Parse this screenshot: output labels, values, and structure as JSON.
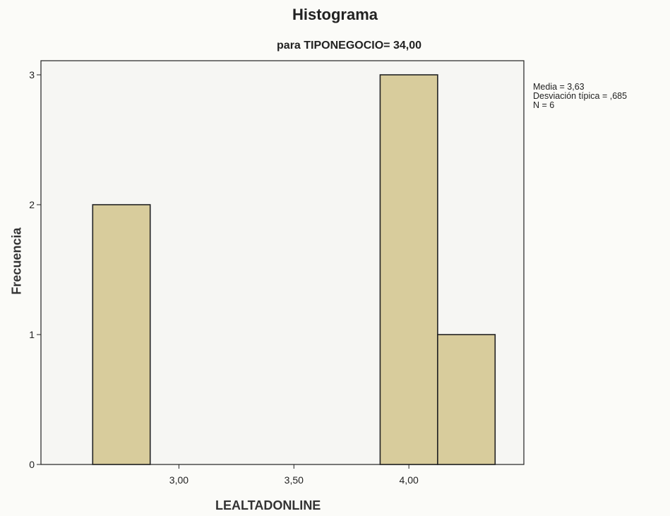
{
  "chart_data": {
    "type": "bar",
    "title": "Histograma",
    "subtitle": "para TIPONEGOCIO= 34,00",
    "xlabel": "LEALTADONLINE",
    "ylabel": "Frecuencia",
    "bins": [
      {
        "start": 2.625,
        "end": 2.875,
        "count": 2
      },
      {
        "start": 3.875,
        "end": 4.125,
        "count": 3
      },
      {
        "start": 4.125,
        "end": 4.375,
        "count": 1
      }
    ],
    "x_ticks": [
      {
        "value": 3.0,
        "label": "3,00"
      },
      {
        "value": 3.5,
        "label": "3,50"
      },
      {
        "value": 4.0,
        "label": "4,00"
      }
    ],
    "y_ticks": [
      {
        "value": 0,
        "label": "0"
      },
      {
        "value": 1,
        "label": "1"
      },
      {
        "value": 2,
        "label": "2"
      },
      {
        "value": 3,
        "label": "3"
      }
    ],
    "ylim": [
      0,
      3.02
    ],
    "xlim": [
      2.4,
      4.5
    ],
    "stats": {
      "mean_label": "Media = 3,63",
      "std_label": "Desviación típica = ,685",
      "n_label": "N = 6"
    },
    "colors": {
      "bar": "#d8cc9c",
      "bar_edge": "#222222",
      "plot_bg": "#f6f6f3"
    },
    "grid": false
  }
}
